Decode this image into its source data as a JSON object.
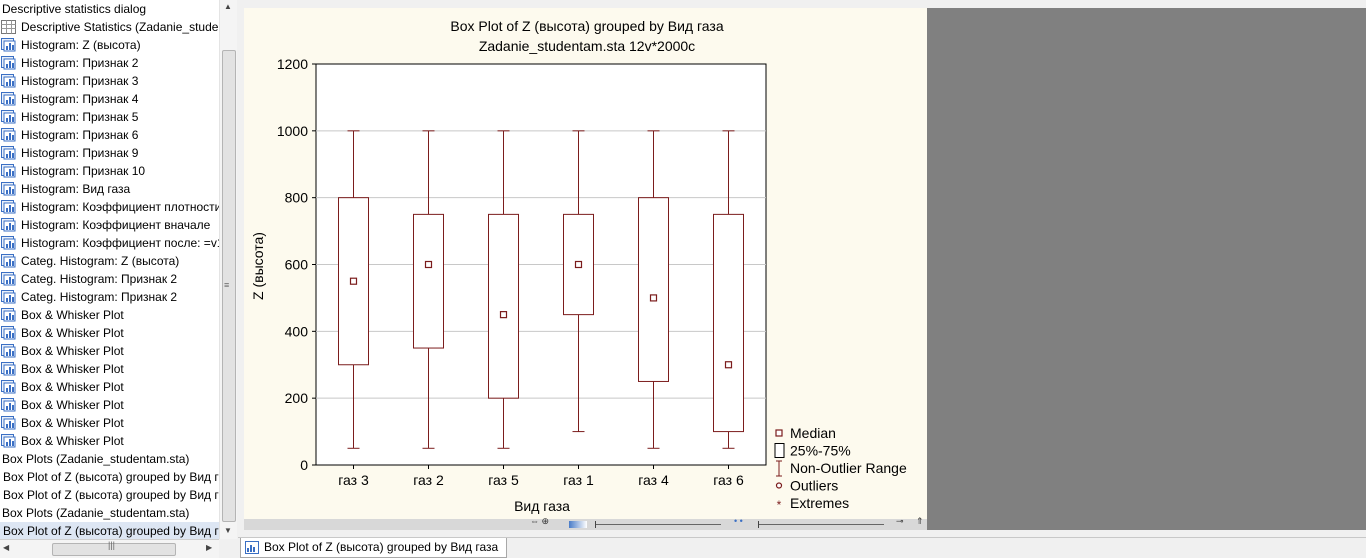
{
  "workbook_tree": {
    "items": [
      {
        "label": "Descriptive statistics dialog",
        "icon": "none",
        "level": "top"
      },
      {
        "label": "Descriptive Statistics (Zadanie_studentam.sta)",
        "icon": "spreadsheet-icon",
        "level": "leaf"
      },
      {
        "label": "Histogram: Z (высота)",
        "icon": "graph-icon",
        "level": "leaf"
      },
      {
        "label": "Histogram: Признак 2",
        "icon": "graph-icon",
        "level": "leaf"
      },
      {
        "label": "Histogram: Признак 3",
        "icon": "graph-icon",
        "level": "leaf"
      },
      {
        "label": "Histogram: Признак 4",
        "icon": "graph-icon",
        "level": "leaf"
      },
      {
        "label": "Histogram: Признак 5",
        "icon": "graph-icon",
        "level": "leaf"
      },
      {
        "label": "Histogram: Признак 6",
        "icon": "graph-icon",
        "level": "leaf"
      },
      {
        "label": "Histogram: Признак 9",
        "icon": "graph-icon",
        "level": "leaf"
      },
      {
        "label": "Histogram: Признак 10",
        "icon": "graph-icon",
        "level": "leaf"
      },
      {
        "label": "Histogram: Вид газа",
        "icon": "graph-icon",
        "level": "leaf"
      },
      {
        "label": "Histogram: Коэффициент плотности",
        "icon": "graph-icon",
        "level": "leaf"
      },
      {
        "label": "Histogram: Коэффициент вначале",
        "icon": "graph-icon",
        "level": "leaf"
      },
      {
        "label": "Histogram: Коэффициент после: =v1",
        "icon": "graph-icon",
        "level": "leaf"
      },
      {
        "label": "Categ. Histogram: Z (высота)",
        "icon": "graph-icon",
        "level": "leaf"
      },
      {
        "label": "Categ. Histogram: Признак 2",
        "icon": "graph-icon",
        "level": "leaf"
      },
      {
        "label": "Categ. Histogram: Признак 2",
        "icon": "graph-icon",
        "level": "leaf"
      },
      {
        "label": "Box & Whisker Plot",
        "icon": "graph-icon",
        "level": "leaf"
      },
      {
        "label": "Box & Whisker Plot",
        "icon": "graph-icon",
        "level": "leaf"
      },
      {
        "label": "Box & Whisker Plot",
        "icon": "graph-icon",
        "level": "leaf"
      },
      {
        "label": "Box & Whisker Plot",
        "icon": "graph-icon",
        "level": "leaf"
      },
      {
        "label": "Box & Whisker Plot",
        "icon": "graph-icon",
        "level": "leaf"
      },
      {
        "label": "Box & Whisker Plot",
        "icon": "graph-icon",
        "level": "leaf"
      },
      {
        "label": "Box & Whisker Plot",
        "icon": "graph-icon",
        "level": "leaf"
      },
      {
        "label": "Box & Whisker Plot",
        "icon": "graph-icon",
        "level": "leaf"
      },
      {
        "label": "Box Plots (Zadanie_studentam.sta)",
        "icon": "none",
        "level": "top"
      },
      {
        "label": "Box Plot of Z (высота) grouped by  Вид газа",
        "icon": "none",
        "level": "child"
      },
      {
        "label": "Box Plot of Z (высота) grouped by  Вид газа",
        "icon": "none",
        "level": "child"
      },
      {
        "label": "Box Plots (Zadanie_studentam.sta)",
        "icon": "none",
        "level": "top"
      },
      {
        "label": "Box Plot of Z (высота) grouped by  Вид газа",
        "icon": "none",
        "level": "child",
        "selected": true
      }
    ]
  },
  "taskbar": {
    "active_tab_label": "Box Plot of Z (высота) grouped by  Вид газа"
  },
  "colors": {
    "plot_background": "#fdfaee",
    "box_color": "#7b1c1c",
    "gray_area": "#808080"
  },
  "chart_data": {
    "type": "boxplot",
    "title": "Box Plot of Z (высота) grouped by  Вид газа",
    "subtitle": "Zadanie_studentam.sta 12v*2000c",
    "xlabel": "Вид газа",
    "ylabel": "Z (высота)",
    "ylim": [
      0,
      1200
    ],
    "yticks": [
      0,
      200,
      400,
      600,
      800,
      1000,
      1200
    ],
    "grid": true,
    "legend_position": "bottom-right",
    "categories": [
      "газ 3",
      "газ 2",
      "газ 5",
      "газ 1",
      "газ 4",
      "газ 6"
    ],
    "series": [
      {
        "category": "газ 3",
        "min": 50,
        "q1": 300,
        "median": 550,
        "q3": 800,
        "max": 1000
      },
      {
        "category": "газ 2",
        "min": 50,
        "q1": 350,
        "median": 600,
        "q3": 750,
        "max": 1000
      },
      {
        "category": "газ 5",
        "min": 50,
        "q1": 200,
        "median": 450,
        "q3": 750,
        "max": 1000
      },
      {
        "category": "газ 1",
        "min": 100,
        "q1": 450,
        "median": 600,
        "q3": 750,
        "max": 1000
      },
      {
        "category": "газ 4",
        "min": 50,
        "q1": 250,
        "median": 500,
        "q3": 800,
        "max": 1000
      },
      {
        "category": "газ 6",
        "min": 50,
        "q1": 100,
        "median": 300,
        "q3": 750,
        "max": 1000
      }
    ],
    "legend": [
      {
        "label": "Median",
        "symbol": "small-square"
      },
      {
        "label": "25%-75%",
        "symbol": "box"
      },
      {
        "label": "Non-Outlier Range",
        "symbol": "whisker"
      },
      {
        "label": "Outliers",
        "symbol": "circle"
      },
      {
        "label": "Extremes",
        "symbol": "asterisk"
      }
    ]
  }
}
